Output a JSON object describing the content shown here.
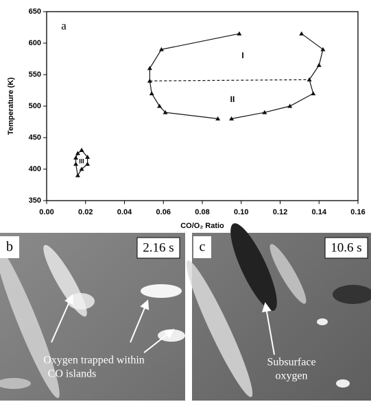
{
  "chart_data": {
    "type": "line",
    "marker": "triangle",
    "color": "#111111",
    "xlabel": "CO/O₂ Ratio",
    "ylabel": "Temperature (K)",
    "xlim": [
      0,
      0.16
    ],
    "ylim": [
      350,
      650
    ],
    "xticks": [
      {
        "value": 0,
        "label": "0.00"
      },
      {
        "value": 0.02,
        "label": "0.02"
      },
      {
        "value": 0.04,
        "label": "0.04"
      },
      {
        "value": 0.06,
        "label": "0.06"
      },
      {
        "value": 0.08,
        "label": "0.08"
      },
      {
        "value": 0.1,
        "label": "0.10"
      },
      {
        "value": 0.12,
        "label": "0.12"
      },
      {
        "value": 0.14,
        "label": "0.14"
      },
      {
        "value": 0.16,
        "label": "0.16"
      }
    ],
    "yticks": [
      350,
      400,
      450,
      500,
      550,
      600,
      650
    ],
    "annotations": [
      "a",
      "I",
      "II",
      "III"
    ],
    "series": [
      {
        "x": [
          0.099,
          0.059,
          0.053,
          0.053,
          0.054,
          0.058,
          0.061,
          0.088
        ],
        "values": [
          615,
          590,
          560,
          540,
          520,
          500,
          490,
          480
        ],
        "style": "solid"
      },
      {
        "x": [
          0.095,
          0.112,
          0.125,
          0.137,
          0.135,
          0.14,
          0.142,
          0.131
        ],
        "values": [
          480,
          490,
          500,
          520,
          542,
          565,
          590,
          615
        ],
        "style": "solid"
      },
      {
        "x": [
          0.053,
          0.135
        ],
        "values": [
          540,
          542
        ],
        "style": "dashed"
      },
      {
        "x": [
          0.018,
          0.021,
          0.021,
          0.018,
          0.016,
          0.015,
          0.015,
          0.016,
          0.018
        ],
        "values": [
          430,
          419,
          408,
          400,
          390,
          408,
          418,
          425,
          430
        ],
        "style": "solid"
      }
    ]
  },
  "panels": [
    {
      "label": "b",
      "time": "2.16 s",
      "caption": [
        "Oxygen trapped within",
        "CO islands"
      ]
    },
    {
      "label": "c",
      "time": "10.6 s",
      "caption": [
        "Subsurface",
        "oxygen"
      ]
    }
  ]
}
